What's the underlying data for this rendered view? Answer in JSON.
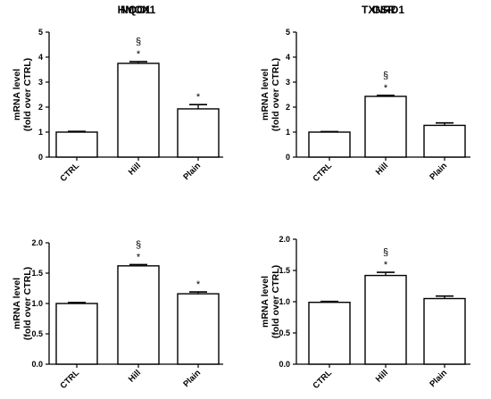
{
  "chart_data": [
    {
      "type": "bar",
      "title": "HMOX1",
      "ylabel": [
        "mRNA level",
        "(fold over CTRL)"
      ],
      "categories": [
        "CTRL",
        "Hill",
        "Plain"
      ],
      "values": [
        1.0,
        3.75,
        1.93
      ],
      "errors": [
        0.03,
        0.07,
        0.17
      ],
      "annotations": [
        [],
        [
          "§",
          "*"
        ],
        [
          "*"
        ]
      ],
      "ylim": [
        0,
        5
      ],
      "yticks": [
        0,
        1,
        2,
        3,
        4,
        5
      ],
      "ytick_labels": [
        "0",
        "1",
        "2",
        "3",
        "4",
        "5"
      ],
      "grid": false
    },
    {
      "type": "bar",
      "title": "TXNRD1",
      "ylabel": [
        "mRNA level",
        "(fold over CTRL)"
      ],
      "categories": [
        "CTRL",
        "Hill",
        "Plain"
      ],
      "values": [
        1.0,
        2.43,
        1.27
      ],
      "errors": [
        0.02,
        0.04,
        0.1
      ],
      "annotations": [
        [],
        [
          "§",
          "*"
        ],
        []
      ],
      "ylim": [
        0,
        5
      ],
      "yticks": [
        0,
        1,
        2,
        3,
        4,
        5
      ],
      "ytick_labels": [
        "0",
        "1",
        "2",
        "3",
        "4",
        "5"
      ],
      "grid": false
    },
    {
      "type": "bar",
      "title": "NQO1",
      "ylabel": [
        "mRNA level",
        "(fold over CTRL)"
      ],
      "categories": [
        "CTRL",
        "Hill",
        "Plain"
      ],
      "values": [
        1.0,
        1.62,
        1.16
      ],
      "errors": [
        0.015,
        0.02,
        0.03
      ],
      "annotations": [
        [],
        [
          "§",
          "*"
        ],
        [
          "*"
        ]
      ],
      "ylim": [
        0,
        2.0
      ],
      "yticks": [
        0,
        0.5,
        1.0,
        1.5,
        2.0
      ],
      "ytick_labels": [
        "0.0",
        "0.5",
        "1.0",
        "1.5",
        "2.0"
      ],
      "grid": false
    },
    {
      "type": "bar",
      "title": "GSR",
      "ylabel": [
        "mRNA level",
        "(fold over CTRL)"
      ],
      "categories": [
        "CTRL",
        "Hill",
        "Plain"
      ],
      "values": [
        0.99,
        1.42,
        1.05
      ],
      "errors": [
        0.015,
        0.05,
        0.04
      ],
      "annotations": [
        [],
        [
          "§",
          "*"
        ],
        []
      ],
      "ylim": [
        0,
        2.0
      ],
      "yticks": [
        0,
        0.5,
        1.0,
        1.5,
        2.0
      ],
      "ytick_labels": [
        "0.0",
        "0.5",
        "1.0",
        "1.5",
        "2.0"
      ],
      "grid": false
    }
  ]
}
